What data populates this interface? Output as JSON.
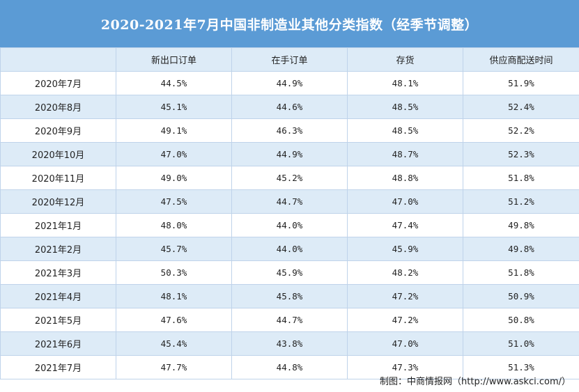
{
  "title": "2020-2021年7月中国非制造业其他分类指数（经季节调整）",
  "chart_data": {
    "type": "table",
    "columns": [
      "",
      "新出口订单",
      "在手订单",
      "存货",
      "供应商配送时间"
    ],
    "rows": [
      [
        "2020年7月",
        "44.5%",
        "44.9%",
        "48.1%",
        "51.9%"
      ],
      [
        "2020年8月",
        "45.1%",
        "44.6%",
        "48.5%",
        "52.4%"
      ],
      [
        "2020年9月",
        "49.1%",
        "46.3%",
        "48.5%",
        "52.2%"
      ],
      [
        "2020年10月",
        "47.0%",
        "44.9%",
        "48.7%",
        "52.3%"
      ],
      [
        "2020年11月",
        "49.0%",
        "45.2%",
        "48.8%",
        "51.8%"
      ],
      [
        "2020年12月",
        "47.5%",
        "44.7%",
        "47.0%",
        "51.2%"
      ],
      [
        "2021年1月",
        "48.0%",
        "44.0%",
        "47.4%",
        "49.8%"
      ],
      [
        "2021年2月",
        "45.7%",
        "44.0%",
        "45.9%",
        "49.8%"
      ],
      [
        "2021年3月",
        "50.3%",
        "45.9%",
        "48.2%",
        "51.8%"
      ],
      [
        "2021年4月",
        "48.1%",
        "45.8%",
        "47.2%",
        "50.9%"
      ],
      [
        "2021年5月",
        "47.6%",
        "44.7%",
        "47.2%",
        "50.8%"
      ],
      [
        "2021年6月",
        "45.4%",
        "43.8%",
        "47.0%",
        "51.0%"
      ],
      [
        "2021年7月",
        "47.7%",
        "44.8%",
        "47.3%",
        "51.3%"
      ]
    ]
  },
  "source": "制图：中商情报网（http://www.askci.com/）",
  "colors": {
    "title_bg": "#5b9bd5",
    "header_bg": "#ddebf7",
    "stripe_bg": "#ddebf7",
    "grid": "#bfd3ea"
  }
}
